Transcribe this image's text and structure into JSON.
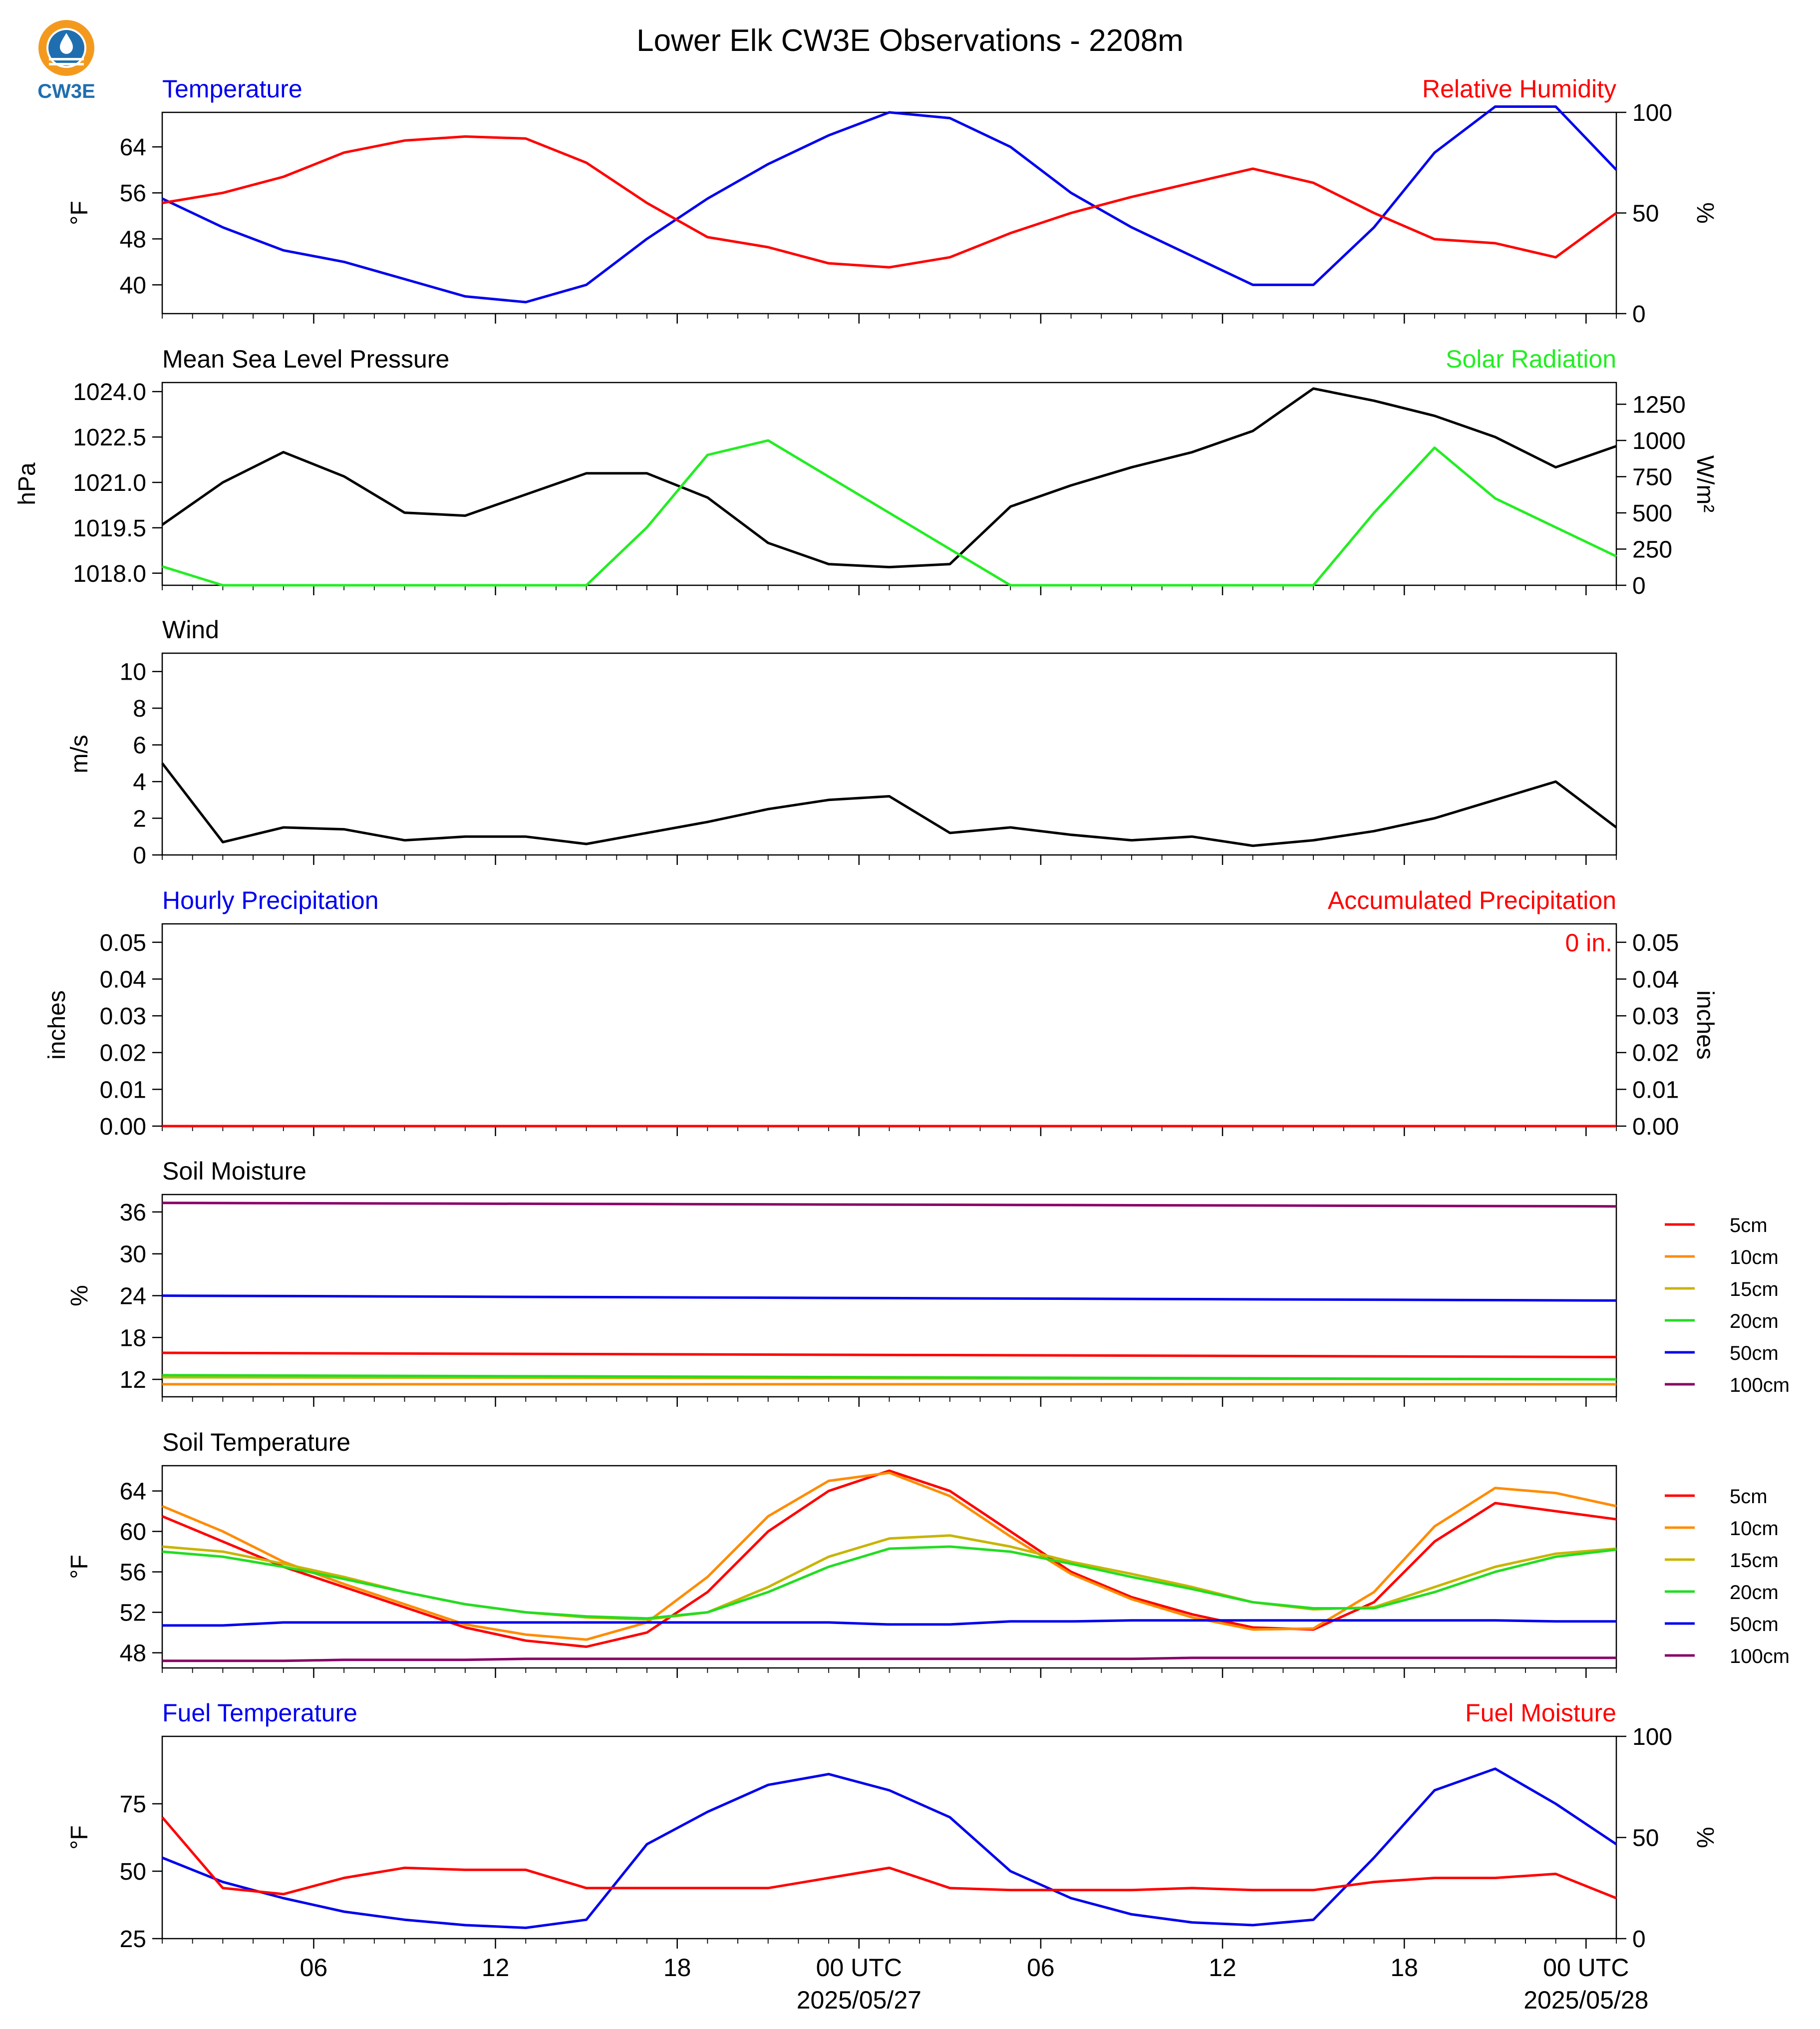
{
  "title": "Lower Elk CW3E Observations - 2208m",
  "logo": {
    "text": "CW3E",
    "colors": {
      "orange": "#f39a1e",
      "blue": "#1f6fb0"
    }
  },
  "x_axis": {
    "tick_labels": [
      "06",
      "12",
      "18",
      "00 UTC",
      "06",
      "12",
      "18",
      "00 UTC"
    ],
    "date_labels": [
      "2025/05/27",
      "2025/05/28"
    ],
    "start": "2025-05-26 01:00 UTC",
    "end": "2025-05-28 01:00 UTC"
  },
  "legend": {
    "entries": [
      "5cm",
      "10cm",
      "15cm",
      "20cm",
      "50cm",
      "100cm"
    ],
    "colors": [
      "#ff0000",
      "#ff8c00",
      "#c8b400",
      "#22dd22",
      "#0000ee",
      "#880066"
    ]
  },
  "panels": {
    "temp_rh": {
      "left_title": "Temperature",
      "right_title": "Relative Humidity",
      "left_unit": "°F",
      "right_unit": "%",
      "left_ticks": [
        "40",
        "48",
        "56",
        "64"
      ],
      "right_ticks": [
        "0",
        "50",
        "100"
      ]
    },
    "pressure_solar": {
      "left_title": "Mean Sea Level Pressure",
      "right_title": "Solar Radiation",
      "left_unit": "hPa",
      "right_unit": "W/m²",
      "left_ticks": [
        "1018.0",
        "1019.5",
        "1021.0",
        "1022.5",
        "1024.0"
      ],
      "right_ticks": [
        "0",
        "250",
        "500",
        "750",
        "1000",
        "1250"
      ]
    },
    "wind": {
      "left_title": "Wind",
      "left_unit": "m/s",
      "left_ticks": [
        "0",
        "2",
        "4",
        "6",
        "8",
        "10"
      ]
    },
    "precip": {
      "left_title": "Hourly Precipitation",
      "right_title": "Accumulated Precipitation",
      "left_unit": "inches",
      "right_unit": "inches",
      "left_ticks": [
        "0.00",
        "0.01",
        "0.02",
        "0.03",
        "0.04",
        "0.05"
      ],
      "right_ticks": [
        "0.00",
        "0.01",
        "0.02",
        "0.03",
        "0.04",
        "0.05"
      ],
      "accum_label": "0 in."
    },
    "soil_moisture": {
      "left_title": "Soil Moisture",
      "left_unit": "%",
      "left_ticks": [
        "12",
        "18",
        "24",
        "30",
        "36"
      ]
    },
    "soil_temp": {
      "left_title": "Soil Temperature",
      "left_unit": "°F",
      "left_ticks": [
        "48",
        "52",
        "56",
        "60",
        "64"
      ]
    },
    "fuel": {
      "left_title": "Fuel Temperature",
      "right_title": "Fuel Moisture",
      "left_unit": "°F",
      "right_unit": "%",
      "left_ticks": [
        "25",
        "50",
        "75"
      ],
      "right_ticks": [
        "0",
        "50",
        "100"
      ]
    }
  },
  "chart_data": [
    {
      "type": "line",
      "x": [
        1,
        3,
        5,
        7,
        9,
        11,
        13,
        15,
        17,
        19,
        21,
        23,
        25,
        27,
        29,
        31,
        33,
        35,
        37,
        39,
        41,
        43,
        45,
        47,
        49
      ],
      "series": [
        {
          "name": "Temperature",
          "axis": "left",
          "color": "#0000ee",
          "values": [
            55,
            50,
            46,
            44,
            41,
            38,
            37,
            40,
            48,
            55,
            61,
            66,
            70,
            69,
            64,
            56,
            50,
            45,
            40,
            40,
            50,
            63,
            71,
            71,
            60
          ]
        },
        {
          "name": "Relative Humidity",
          "axis": "right",
          "color": "#ff0000",
          "values": [
            55,
            60,
            68,
            80,
            86,
            88,
            87,
            75,
            55,
            38,
            33,
            25,
            23,
            28,
            40,
            50,
            58,
            65,
            72,
            65,
            50,
            37,
            35,
            28,
            50
          ]
        }
      ],
      "ylim": [
        35,
        70
      ],
      "y2lim": [
        0,
        100
      ]
    },
    {
      "type": "line",
      "x": [
        1,
        3,
        5,
        7,
        9,
        11,
        13,
        15,
        17,
        19,
        21,
        23,
        25,
        27,
        29,
        31,
        33,
        35,
        37,
        39,
        41,
        43,
        45,
        47,
        49
      ],
      "series": [
        {
          "name": "Mean Sea Level Pressure",
          "axis": "left",
          "color": "#000000",
          "values": [
            1019.6,
            1021.0,
            1022.0,
            1021.2,
            1020.0,
            1019.9,
            1020.6,
            1021.3,
            1021.3,
            1020.5,
            1019.0,
            1018.3,
            1018.2,
            1018.3,
            1020.2,
            1020.9,
            1021.5,
            1022.0,
            1022.7,
            1024.1,
            1023.7,
            1023.2,
            1022.5,
            1021.5,
            1022.2
          ]
        },
        {
          "name": "Solar Radiation",
          "axis": "right",
          "color": "#22ee22",
          "values": [
            130,
            0,
            0,
            0,
            0,
            0,
            0,
            0,
            400,
            900,
            1000,
            750,
            500,
            250,
            0,
            0,
            0,
            0,
            0,
            0,
            500,
            950,
            600,
            400,
            200
          ]
        }
      ],
      "ylim": [
        1017.6,
        1024.3
      ],
      "y2lim": [
        0,
        1400
      ]
    },
    {
      "type": "line",
      "x": [
        1,
        3,
        5,
        7,
        9,
        11,
        13,
        15,
        17,
        19,
        21,
        23,
        25,
        27,
        29,
        31,
        33,
        35,
        37,
        39,
        41,
        43,
        45,
        47,
        49
      ],
      "series": [
        {
          "name": "Wind",
          "color": "#000000",
          "values": [
            5.0,
            0.7,
            1.5,
            1.4,
            0.8,
            1.0,
            1.0,
            0.6,
            1.2,
            1.8,
            2.5,
            3.0,
            3.2,
            1.2,
            1.5,
            1.1,
            0.8,
            1.0,
            0.5,
            0.8,
            1.3,
            2.0,
            3.0,
            4.0,
            1.5
          ]
        }
      ],
      "ylim": [
        0,
        11
      ]
    },
    {
      "type": "line",
      "x": [
        1,
        49
      ],
      "series": [
        {
          "name": "Hourly Precipitation",
          "axis": "left",
          "color": "#0000ee",
          "values": [
            0,
            0
          ]
        },
        {
          "name": "Accumulated Precipitation",
          "axis": "right",
          "color": "#ff0000",
          "values": [
            0,
            0
          ]
        }
      ],
      "ylim": [
        0,
        0.055
      ],
      "y2lim": [
        0,
        0.055
      ]
    },
    {
      "type": "line",
      "x": [
        1,
        49
      ],
      "series": [
        {
          "name": "5cm",
          "color": "#ff0000",
          "values": [
            15.8,
            15.2
          ]
        },
        {
          "name": "10cm",
          "color": "#ff8c00",
          "values": [
            11.3,
            11.3
          ]
        },
        {
          "name": "15cm",
          "color": "#c8b400",
          "values": [
            12.3,
            12.0
          ]
        },
        {
          "name": "20cm",
          "color": "#22dd22",
          "values": [
            12.6,
            12.0
          ]
        },
        {
          "name": "50cm",
          "color": "#0000ee",
          "values": [
            24.0,
            23.3
          ]
        },
        {
          "name": "100cm",
          "color": "#880066",
          "values": [
            37.3,
            36.8
          ]
        }
      ],
      "ylim": [
        9.5,
        38.5
      ]
    },
    {
      "type": "line",
      "x": [
        1,
        3,
        5,
        7,
        9,
        11,
        13,
        15,
        17,
        19,
        21,
        23,
        25,
        27,
        29,
        31,
        33,
        35,
        37,
        39,
        41,
        43,
        45,
        47,
        49
      ],
      "series": [
        {
          "name": "5cm",
          "color": "#ff0000",
          "values": [
            61.5,
            59.0,
            56.5,
            54.5,
            52.5,
            50.5,
            49.2,
            48.6,
            50.0,
            54.0,
            60.0,
            64.0,
            66.0,
            64.0,
            60.0,
            56.0,
            53.5,
            51.8,
            50.5,
            50.3,
            53.0,
            59.0,
            62.8,
            62.0,
            61.2
          ]
        },
        {
          "name": "10cm",
          "color": "#ff8c00",
          "values": [
            62.5,
            60.0,
            57.0,
            54.8,
            52.8,
            50.8,
            49.8,
            49.3,
            51.0,
            55.5,
            61.5,
            65.0,
            65.8,
            63.5,
            59.5,
            55.8,
            53.3,
            51.5,
            50.3,
            50.4,
            54.0,
            60.5,
            64.3,
            63.8,
            62.5
          ]
        },
        {
          "name": "15cm",
          "color": "#c8b400",
          "values": [
            58.5,
            58.0,
            56.8,
            55.5,
            54.0,
            52.8,
            52.0,
            51.5,
            51.3,
            52.0,
            54.5,
            57.5,
            59.3,
            59.6,
            58.5,
            57.0,
            55.8,
            54.5,
            53.0,
            52.3,
            52.5,
            54.5,
            56.5,
            57.8,
            58.3
          ]
        },
        {
          "name": "20cm",
          "color": "#22dd22",
          "values": [
            58.0,
            57.5,
            56.5,
            55.3,
            54.0,
            52.8,
            52.0,
            51.6,
            51.4,
            52.0,
            54.0,
            56.5,
            58.3,
            58.5,
            58.0,
            56.8,
            55.5,
            54.3,
            53.0,
            52.4,
            52.4,
            54.0,
            56.0,
            57.5,
            58.2
          ]
        },
        {
          "name": "50cm",
          "color": "#0000ee",
          "values": [
            50.7,
            50.7,
            51.0,
            51.0,
            51.0,
            51.0,
            51.0,
            51.0,
            51.0,
            51.0,
            51.0,
            51.0,
            50.8,
            50.8,
            51.1,
            51.1,
            51.2,
            51.2,
            51.2,
            51.2,
            51.2,
            51.2,
            51.2,
            51.1,
            51.1
          ]
        },
        {
          "name": "100cm",
          "color": "#880066",
          "values": [
            47.2,
            47.2,
            47.2,
            47.3,
            47.3,
            47.3,
            47.4,
            47.4,
            47.4,
            47.4,
            47.4,
            47.4,
            47.4,
            47.4,
            47.4,
            47.4,
            47.4,
            47.5,
            47.5,
            47.5,
            47.5,
            47.5,
            47.5,
            47.5,
            47.5
          ]
        }
      ],
      "ylim": [
        46.5,
        66.5
      ]
    },
    {
      "type": "line",
      "x": [
        1,
        3,
        5,
        7,
        9,
        11,
        13,
        15,
        17,
        19,
        21,
        23,
        25,
        27,
        29,
        31,
        33,
        35,
        37,
        39,
        41,
        43,
        45,
        47,
        49
      ],
      "series": [
        {
          "name": "Fuel Temperature",
          "axis": "left",
          "color": "#0000ee",
          "values": [
            55,
            46,
            40,
            35,
            32,
            30,
            29,
            32,
            60,
            72,
            82,
            86,
            80,
            70,
            50,
            40,
            34,
            31,
            30,
            32,
            55,
            80,
            88,
            75,
            60
          ]
        },
        {
          "name": "Fuel Moisture",
          "axis": "right",
          "color": "#ff0000",
          "values": [
            60,
            25,
            22,
            30,
            35,
            34,
            34,
            25,
            25,
            25,
            25,
            30,
            35,
            25,
            24,
            24,
            24,
            25,
            24,
            24,
            28,
            30,
            30,
            32,
            20
          ]
        }
      ],
      "ylim": [
        25,
        100
      ],
      "y2lim": [
        0,
        100
      ]
    }
  ]
}
